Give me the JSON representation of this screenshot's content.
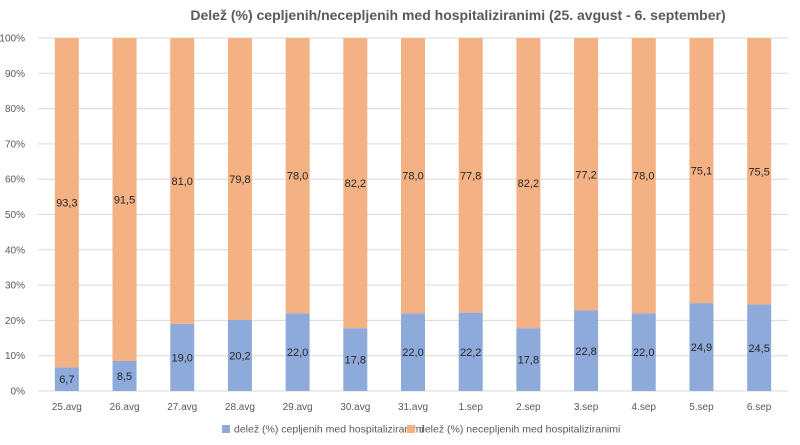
{
  "chart_data": {
    "type": "bar",
    "stacked": true,
    "title": "Delež (%) cepljenih/necepljenih med hospitaliziranimi (25. avgust - 6. september)",
    "categories": [
      "25.avg",
      "26.avg",
      "27.avg",
      "28.avg",
      "29.avg",
      "30.avg",
      "31.avg",
      "1.sep",
      "2.sep",
      "3.sep",
      "4.sep",
      "5.sep",
      "6.sep"
    ],
    "series": [
      {
        "name": "delež (%) cepljenih med hospitaliziranimi",
        "color": "#8eaadb",
        "values": [
          6.7,
          8.5,
          19.0,
          20.2,
          22.0,
          17.8,
          22.0,
          22.2,
          17.8,
          22.8,
          22.0,
          24.9,
          24.5
        ],
        "labels": [
          "6,7",
          "8,5",
          "19,0",
          "20,2",
          "22,0",
          "17,8",
          "22,0",
          "22,2",
          "17,8",
          "22,8",
          "22,0",
          "24,9",
          "24,5"
        ]
      },
      {
        "name": "delež (%) necepljenih med hospitaliziranimi",
        "color": "#f4b183",
        "values": [
          93.3,
          91.5,
          81.0,
          79.8,
          78.0,
          82.2,
          78.0,
          77.8,
          82.2,
          77.2,
          78.0,
          75.1,
          75.5
        ],
        "labels": [
          "93,3",
          "91,5",
          "81,0",
          "79,8",
          "78,0",
          "82,2",
          "78,0",
          "77,8",
          "82,2",
          "77,2",
          "78,0",
          "75,1",
          "75,5"
        ]
      }
    ],
    "yticks": [
      "0%",
      "10%",
      "20%",
      "30%",
      "40%",
      "50%",
      "60%",
      "70%",
      "80%",
      "90%",
      "100%"
    ],
    "ylim": [
      0,
      100
    ],
    "grid": true,
    "legend_position": "bottom"
  }
}
